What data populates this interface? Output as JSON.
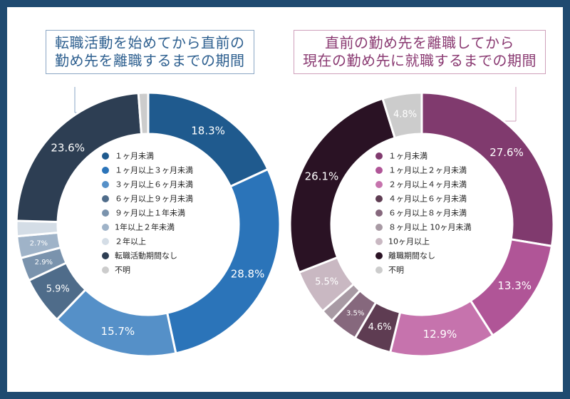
{
  "chart_data": [
    {
      "type": "pie",
      "title": "転職活動を始めてから直前の勤め先を離職するまでの期間",
      "title_lines": [
        "転職活動を始めてから直前の",
        "勤め先を離職するまでの期間"
      ],
      "legend_position": "center",
      "categories": [
        "１ヶ月未満",
        "１ヶ月以上３ヶ月未満",
        "３ヶ月以上６ヶ月未満",
        "６ヶ月以上９ヶ月未満",
        "９ヶ月以上１年未満",
        "1年以上２年未満",
        "２年以上",
        "転職活動期間なし",
        "不明"
      ],
      "values": [
        18.3,
        28.8,
        15.7,
        5.9,
        2.9,
        2.7,
        1.9,
        23.6,
        1.2
      ],
      "labels": [
        "18.3%",
        "28.8%",
        "15.7%",
        "5.9%",
        "2.9%",
        "2.7%",
        "",
        "23.6%",
        ""
      ],
      "colors": [
        "#1f5a8e",
        "#2b74b9",
        "#5590c8",
        "#4f6c8a",
        "#7a93ad",
        "#9fb3c8",
        "#d4dde6",
        "#2d3e53",
        "#cccccc"
      ]
    },
    {
      "type": "pie",
      "title": "直前の勤め先を離職してから現在の勤め先に就職するまでの期間",
      "title_lines": [
        "直前の勤め先を離職してから",
        "現在の勤め先に就職するまでの期間"
      ],
      "legend_position": "center",
      "categories": [
        "１ヶ月未満",
        "１ヶ月以上２ヶ月未満",
        "２ヶ月以上４ヶ月未満",
        "４ヶ月以上６ヶ月未満",
        "６ヶ月以上８ヶ月未満",
        "８ヶ月以上 10ヶ月未満",
        "10ヶ月以上",
        "離職期間なし",
        "不明"
      ],
      "values": [
        27.6,
        13.3,
        12.9,
        4.6,
        3.5,
        1.6,
        5.5,
        26.1,
        4.8
      ],
      "labels": [
        "27.6%",
        "13.3%",
        "12.9%",
        "4.6%",
        "3.5%",
        "",
        "5.5%",
        "26.1%",
        "4.8%"
      ],
      "colors": [
        "#803a6e",
        "#b05597",
        "#c673ad",
        "#5e3c52",
        "#86687d",
        "#a89aa4",
        "#c9b8c2",
        "#2a1224",
        "#cccccc"
      ]
    }
  ]
}
